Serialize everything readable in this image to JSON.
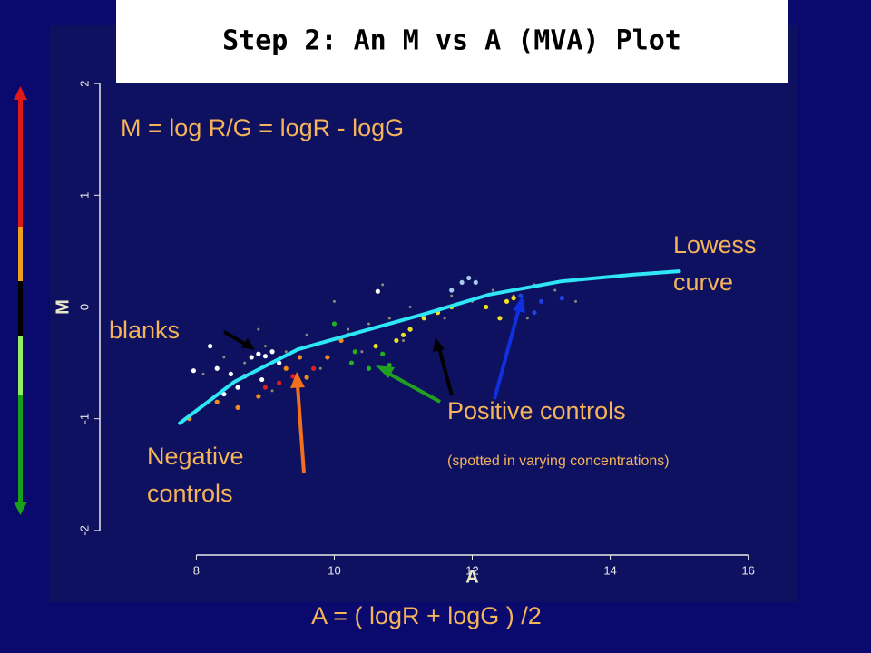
{
  "title": "Step 2: An  M vs A (MVA) Plot",
  "chart_data": {
    "type": "scatter",
    "x_label": "A",
    "y_label": "M",
    "xlim": [
      6.6,
      16.4
    ],
    "ylim": [
      -2.05,
      2.05
    ],
    "xticks": [
      8,
      10,
      12,
      14,
      16
    ],
    "yticks": [
      -2,
      -1,
      0,
      1,
      2
    ],
    "reference_line": 0,
    "series": [
      {
        "color": "#8c8c78",
        "x": [
          8.1,
          8.4,
          8.7,
          9.0,
          9.3,
          9.6,
          9.9,
          10.2,
          10.5,
          10.8,
          11.1,
          11.4,
          11.7,
          12.0,
          12.3,
          12.6,
          12.9,
          13.2,
          9.1,
          9.8,
          10.4,
          11.0,
          11.6,
          8.9,
          10.0,
          12.8,
          13.5,
          10.7
        ],
        "y": [
          -0.6,
          -0.45,
          -0.5,
          -0.35,
          -0.4,
          -0.25,
          -0.3,
          -0.2,
          -0.15,
          -0.1,
          0.0,
          -0.05,
          0.1,
          0.05,
          0.15,
          0.1,
          0.2,
          0.15,
          -0.75,
          -0.55,
          -0.4,
          -0.3,
          -0.1,
          -0.2,
          0.05,
          -0.1,
          0.05,
          0.2
        ]
      },
      {
        "color": "#ffffff",
        "x": [
          7.96,
          8.3,
          8.5,
          8.6,
          8.8,
          8.9,
          9.0,
          9.1,
          8.7,
          8.4,
          8.2,
          9.2,
          8.95,
          10.63
        ],
        "y": [
          -0.57,
          -0.55,
          -0.6,
          -0.72,
          -0.45,
          -0.42,
          -0.44,
          -0.4,
          -0.62,
          -0.78,
          -0.35,
          -0.5,
          -0.65,
          0.14
        ]
      },
      {
        "color": "#a8c8f0",
        "x": [
          11.7,
          11.85,
          11.95,
          12.05
        ],
        "y": [
          0.15,
          0.22,
          0.26,
          0.22
        ]
      },
      {
        "color": "#f08c1e",
        "x": [
          7.9,
          8.3,
          8.9,
          9.3,
          9.5,
          9.6,
          8.6,
          9.9,
          10.1
        ],
        "y": [
          -1.0,
          -0.85,
          -0.8,
          -0.55,
          -0.45,
          -0.63,
          -0.9,
          -0.45,
          -0.3
        ]
      },
      {
        "color": "#e02020",
        "x": [
          9.0,
          9.2,
          9.4,
          9.7,
          9.5
        ],
        "y": [
          -0.72,
          -0.68,
          -0.62,
          -0.55,
          -0.7
        ]
      },
      {
        "color": "#20b020",
        "x": [
          10.2,
          10.3,
          10.5,
          10.7,
          10.8,
          10.0,
          10.25
        ],
        "y": [
          -0.25,
          -0.4,
          -0.55,
          -0.42,
          -0.52,
          -0.15,
          -0.5
        ]
      },
      {
        "color": "#f0e020",
        "x": [
          10.6,
          10.9,
          11.1,
          11.3,
          11.5,
          11.7,
          12.2,
          12.5,
          12.4,
          12.6,
          11.0
        ],
        "y": [
          -0.35,
          -0.3,
          -0.2,
          -0.1,
          -0.05,
          0.0,
          0.0,
          0.05,
          -0.1,
          0.08,
          -0.25
        ]
      },
      {
        "color": "#2040e0",
        "x": [
          12.7,
          13.0,
          13.3,
          12.9
        ],
        "y": [
          0.1,
          0.05,
          0.08,
          -0.05
        ]
      }
    ],
    "curve": {
      "color": "#2ee6f5",
      "x": [
        7.76,
        8.55,
        9.47,
        10.39,
        11.32,
        12.24,
        13.29,
        14.34,
        15.0
      ],
      "y": [
        -1.04,
        -0.67,
        -0.38,
        -0.22,
        -0.06,
        0.11,
        0.23,
        0.29,
        0.32
      ]
    },
    "annotations": {
      "formula_m": "M = log R/G = logR - logG",
      "lowess": [
        "Lowess",
        "curve"
      ],
      "blanks": "blanks",
      "positive": "Positive controls",
      "positive_note": "(spotted in varying concentrations)",
      "negative": [
        "Negative",
        "controls"
      ],
      "formula_a": "A = ( logR + logG ) /2"
    }
  }
}
